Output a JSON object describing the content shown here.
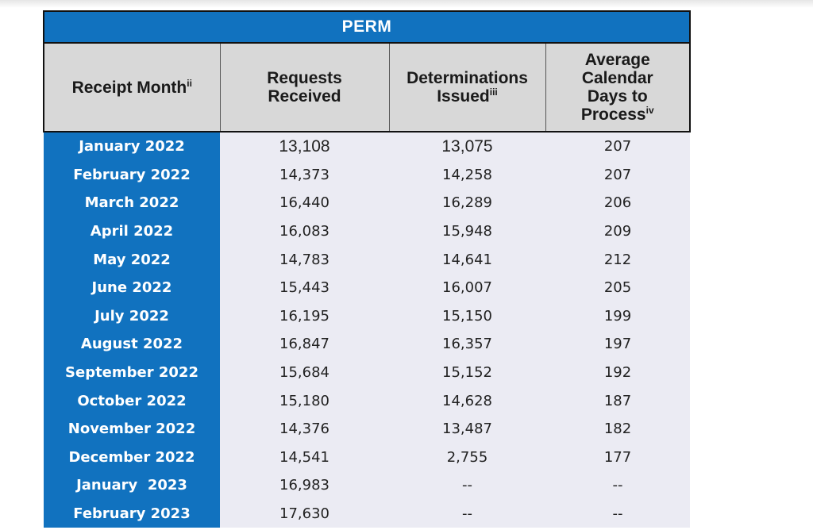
{
  "table": {
    "title": "PERM",
    "headers": {
      "receipt_month": "Receipt Month",
      "receipt_month_note": "ii",
      "requests_line1": "Requests",
      "requests_line2": "Received",
      "determinations_line1": "Determinations",
      "determinations_line2": "Issued",
      "determinations_note": "iii",
      "days_line1": "Average",
      "days_line2": "Calendar",
      "days_line3": "Days to",
      "days_line4": "Process",
      "days_note": "iv"
    },
    "rows": [
      {
        "month": "January 2022",
        "requests": "13,108",
        "determinations": "13,075",
        "days": "207"
      },
      {
        "month": "February 2022",
        "requests": "14,373",
        "determinations": "14,258",
        "days": "207"
      },
      {
        "month": "March 2022",
        "requests": "16,440",
        "determinations": "16,289",
        "days": "206"
      },
      {
        "month": "April 2022",
        "requests": "16,083",
        "determinations": "15,948",
        "days": "209"
      },
      {
        "month": "May 2022",
        "requests": "14,783",
        "determinations": "14,641",
        "days": "212"
      },
      {
        "month": "June 2022",
        "requests": "15,443",
        "determinations": "16,007",
        "days": "205"
      },
      {
        "month": "July 2022",
        "requests": "16,195",
        "determinations": "15,150",
        "days": "199"
      },
      {
        "month": "August 2022",
        "requests": "16,847",
        "determinations": "16,357",
        "days": "197"
      },
      {
        "month": "September 2022",
        "requests": "15,684",
        "determinations": "15,152",
        "days": "192"
      },
      {
        "month": "October 2022",
        "requests": "15,180",
        "determinations": "14,628",
        "days": "187"
      },
      {
        "month": "November 2022",
        "requests": "14,376",
        "determinations": "13,487",
        "days": "182"
      },
      {
        "month": "December 2022",
        "requests": "14,541",
        "determinations": "2,755",
        "days": "177"
      },
      {
        "month": "January  2023",
        "requests": "16,983",
        "determinations": "--",
        "days": "--"
      },
      {
        "month": "February 2023",
        "requests": "17,630",
        "determinations": "--",
        "days": "--"
      }
    ]
  },
  "colors": {
    "month_column_bg": "#1172bf",
    "header_bg": "#d8d8d8",
    "value_bg": "#ebebf3"
  }
}
